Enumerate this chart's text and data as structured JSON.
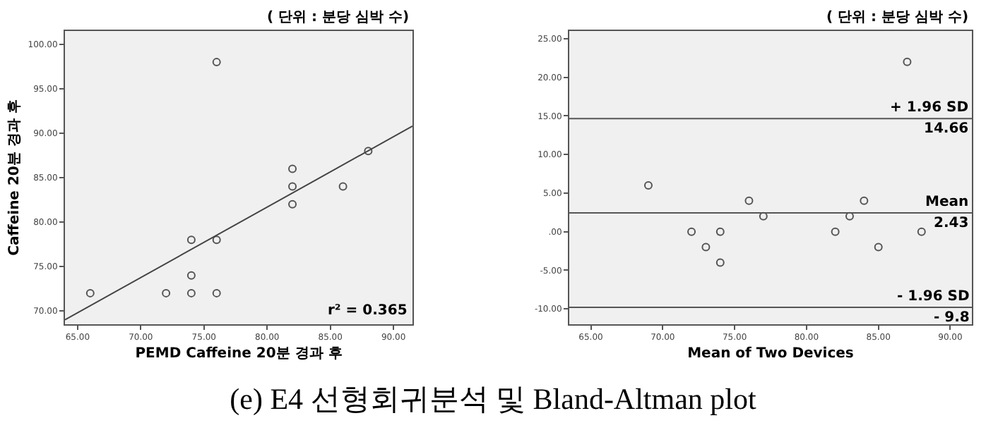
{
  "chart_data": [
    {
      "type": "scatter",
      "subtitle": "( 단위 : 분당 심박 수)",
      "xlabel": "PEMD Caffeine 20분 경과 후",
      "ylabel": "Caffeine 20분 경과 후",
      "xlim": [
        64,
        91.5
      ],
      "ylim": [
        68.5,
        101.5
      ],
      "xticks": [
        {
          "value": 65,
          "label": "65.00"
        },
        {
          "value": 70,
          "label": "70.00"
        },
        {
          "value": 75,
          "label": "75.00"
        },
        {
          "value": 80,
          "label": "80.00"
        },
        {
          "value": 85,
          "label": "85.00"
        },
        {
          "value": 90,
          "label": "90.00"
        }
      ],
      "yticks": [
        {
          "value": 70,
          "label": "70.00"
        },
        {
          "value": 75,
          "label": "75.00"
        },
        {
          "value": 80,
          "label": "80.00"
        },
        {
          "value": 85,
          "label": "85.00"
        },
        {
          "value": 90,
          "label": "90.00"
        },
        {
          "value": 95,
          "label": "95.00"
        },
        {
          "value": 100,
          "label": "100.00"
        }
      ],
      "series": [
        {
          "marker": "circle",
          "color": "#555555",
          "x": [
            66,
            72,
            74,
            74,
            74,
            76,
            76,
            76,
            82,
            82,
            82,
            86,
            88
          ],
          "values": [
            72,
            72,
            72,
            74,
            78,
            72,
            78,
            98,
            82,
            84,
            86,
            84,
            88
          ]
        },
        {
          "type": "line",
          "color": "#444444",
          "x": [
            64,
            91.5
          ],
          "values": [
            69,
            90.8
          ]
        }
      ],
      "grid": false,
      "annotations": [
        "r² = 0.365"
      ]
    },
    {
      "type": "scatter",
      "subtitle": "( 단위 : 분당 심박 수)",
      "xlabel": "Mean of Two Devices",
      "xlim": [
        63.5,
        91.5
      ],
      "ylim": [
        -12,
        26
      ],
      "xticks": [
        {
          "value": 65,
          "label": "65.00"
        },
        {
          "value": 70,
          "label": "70.00"
        },
        {
          "value": 75,
          "label": "75.00"
        },
        {
          "value": 80,
          "label": "80.00"
        },
        {
          "value": 85,
          "label": "85.00"
        },
        {
          "value": 90,
          "label": "90.00"
        }
      ],
      "yticks": [
        {
          "value": -10,
          "label": "-10.00"
        },
        {
          "value": -5,
          "label": "-5.00"
        },
        {
          "value": 0,
          "label": ".00"
        },
        {
          "value": 5,
          "label": "5.00"
        },
        {
          "value": 10,
          "label": "10.00"
        },
        {
          "value": 15,
          "label": "15.00"
        },
        {
          "value": 20,
          "label": "20.00"
        },
        {
          "value": 25,
          "label": "25.00"
        }
      ],
      "series": [
        {
          "color": "#555555",
          "x": [
            69,
            72,
            73,
            74,
            74,
            76,
            77,
            82,
            83,
            84,
            85,
            87,
            88
          ],
          "values": [
            6,
            0,
            -2,
            0,
            -4,
            4,
            2,
            0,
            2,
            4,
            -2,
            22,
            0
          ]
        }
      ],
      "ref_lines": [
        {
          "axis": "y",
          "value": 14.66,
          "label": "+ 1.96 SD",
          "color": "#555555"
        },
        {
          "axis": "y",
          "value": 2.43,
          "label": "Mean",
          "color": "#555555"
        },
        {
          "axis": "y",
          "value": -9.8,
          "label": "- 1.96 SD",
          "color": "#555555"
        }
      ],
      "marker": "circle",
      "grid": false,
      "annotations": [
        {
          "text": "14.66",
          "y": 14.66
        },
        {
          "text": "2.43",
          "y": 2.43
        },
        {
          "text": "- 9.8",
          "y": -9.8
        },
        "(e) E4 선형회귀분석 및 Bland-Altman plot"
      ]
    }
  ]
}
